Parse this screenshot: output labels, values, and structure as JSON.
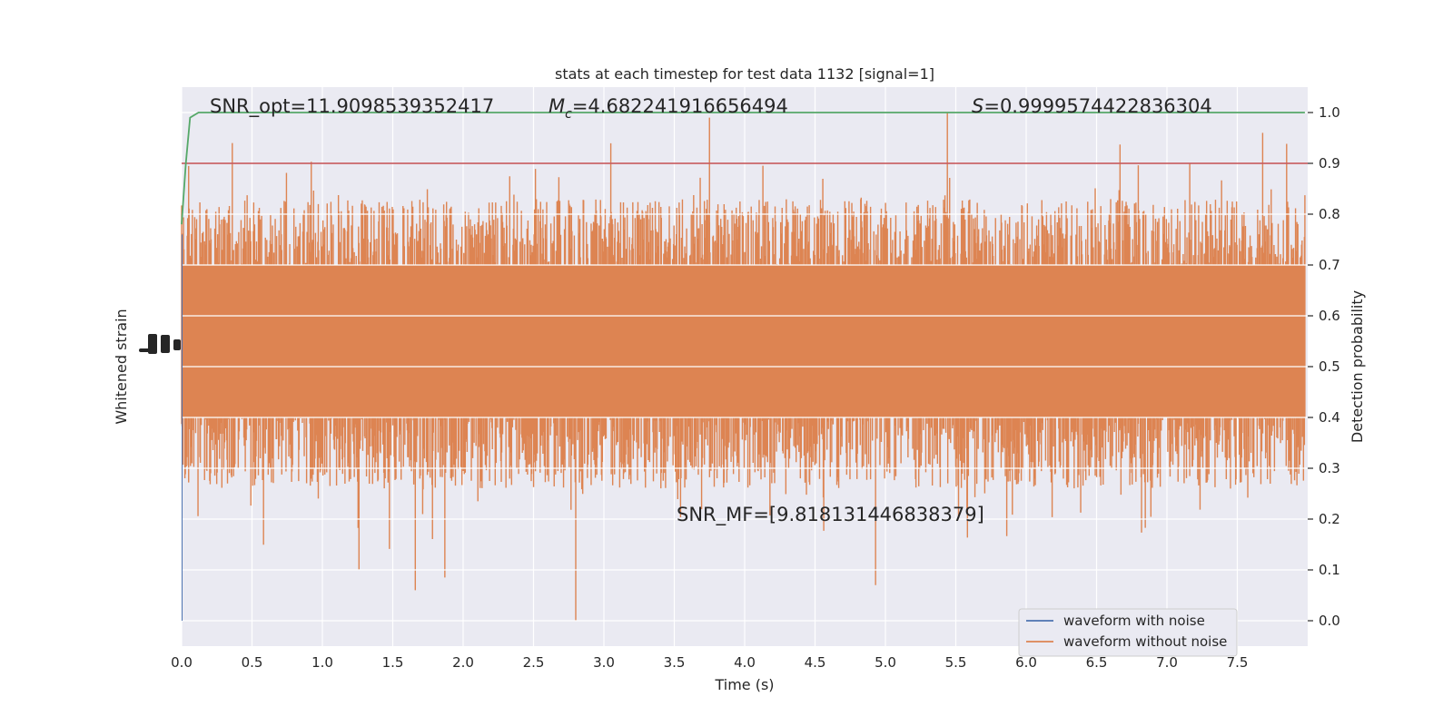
{
  "chart_data": {
    "type": "line",
    "title": "stats at each timestep for test data 1132 [signal=1]",
    "xlabel": "Time (s)",
    "ylabel_left": "Whitened strain",
    "ylabel_right": "Detection probability",
    "xlim": [
      0.0,
      8.0
    ],
    "ylim_right": [
      -0.05,
      1.05
    ],
    "grid": true,
    "x_ticks": [
      0.0,
      0.5,
      1.0,
      1.5,
      2.0,
      2.5,
      3.0,
      3.5,
      4.0,
      4.5,
      5.0,
      5.5,
      6.0,
      6.5,
      7.0,
      7.5
    ],
    "x_tick_labels": [
      "0.0",
      "0.5",
      "1.0",
      "1.5",
      "2.0",
      "2.5",
      "3.0",
      "3.5",
      "4.0",
      "4.5",
      "5.0",
      "5.5",
      "6.0",
      "6.5",
      "7.0",
      "7.5"
    ],
    "y_right_ticks": [
      0.0,
      0.1,
      0.2,
      0.3,
      0.4,
      0.5,
      0.6,
      0.7,
      0.8,
      0.9,
      1.0
    ],
    "y_right_tick_labels": [
      "0.0",
      "0.1",
      "0.2",
      "0.3",
      "0.4",
      "0.5",
      "0.6",
      "0.7",
      "0.8",
      "0.9",
      "1.0"
    ],
    "threshold": 0.9,
    "strain_band": {
      "center": 0.55,
      "core_low": 0.4,
      "core_high": 0.7,
      "max_peak": 1.0,
      "min_trough": 0.0,
      "duration": 7.98
    },
    "detection_probability": {
      "x": [
        0.0,
        0.03,
        0.06,
        0.12,
        0.2,
        1.0,
        2.0,
        3.0,
        4.0,
        5.0,
        6.0,
        7.0,
        7.98
      ],
      "y": [
        0.78,
        0.9,
        0.99,
        1.0,
        1.0,
        1.0,
        1.0,
        1.0,
        1.0,
        1.0,
        1.0,
        1.0,
        1.0
      ]
    },
    "annotations": {
      "snr_opt": "SNR_opt=11.9098539352417",
      "mc_symbol": "M",
      "mc_sub": "c",
      "mc_value": "=4.682241916656494",
      "s_symbol": "S",
      "s_value": "=0.9999574422836304",
      "snr_mf": "SNR_MF=[9.818131446838379]"
    },
    "legend": {
      "position": "lower-right",
      "entries": [
        {
          "label": "waveform with noise",
          "color": "#4c72b0"
        },
        {
          "label": "waveform without noise",
          "color": "#dd8452"
        }
      ]
    },
    "colors": {
      "background": "#eaeaf2",
      "grid": "#ffffff",
      "strain": "#dd8452",
      "noise": "#4c72b0",
      "probability": "#55a868",
      "threshold": "#c44e52"
    }
  }
}
